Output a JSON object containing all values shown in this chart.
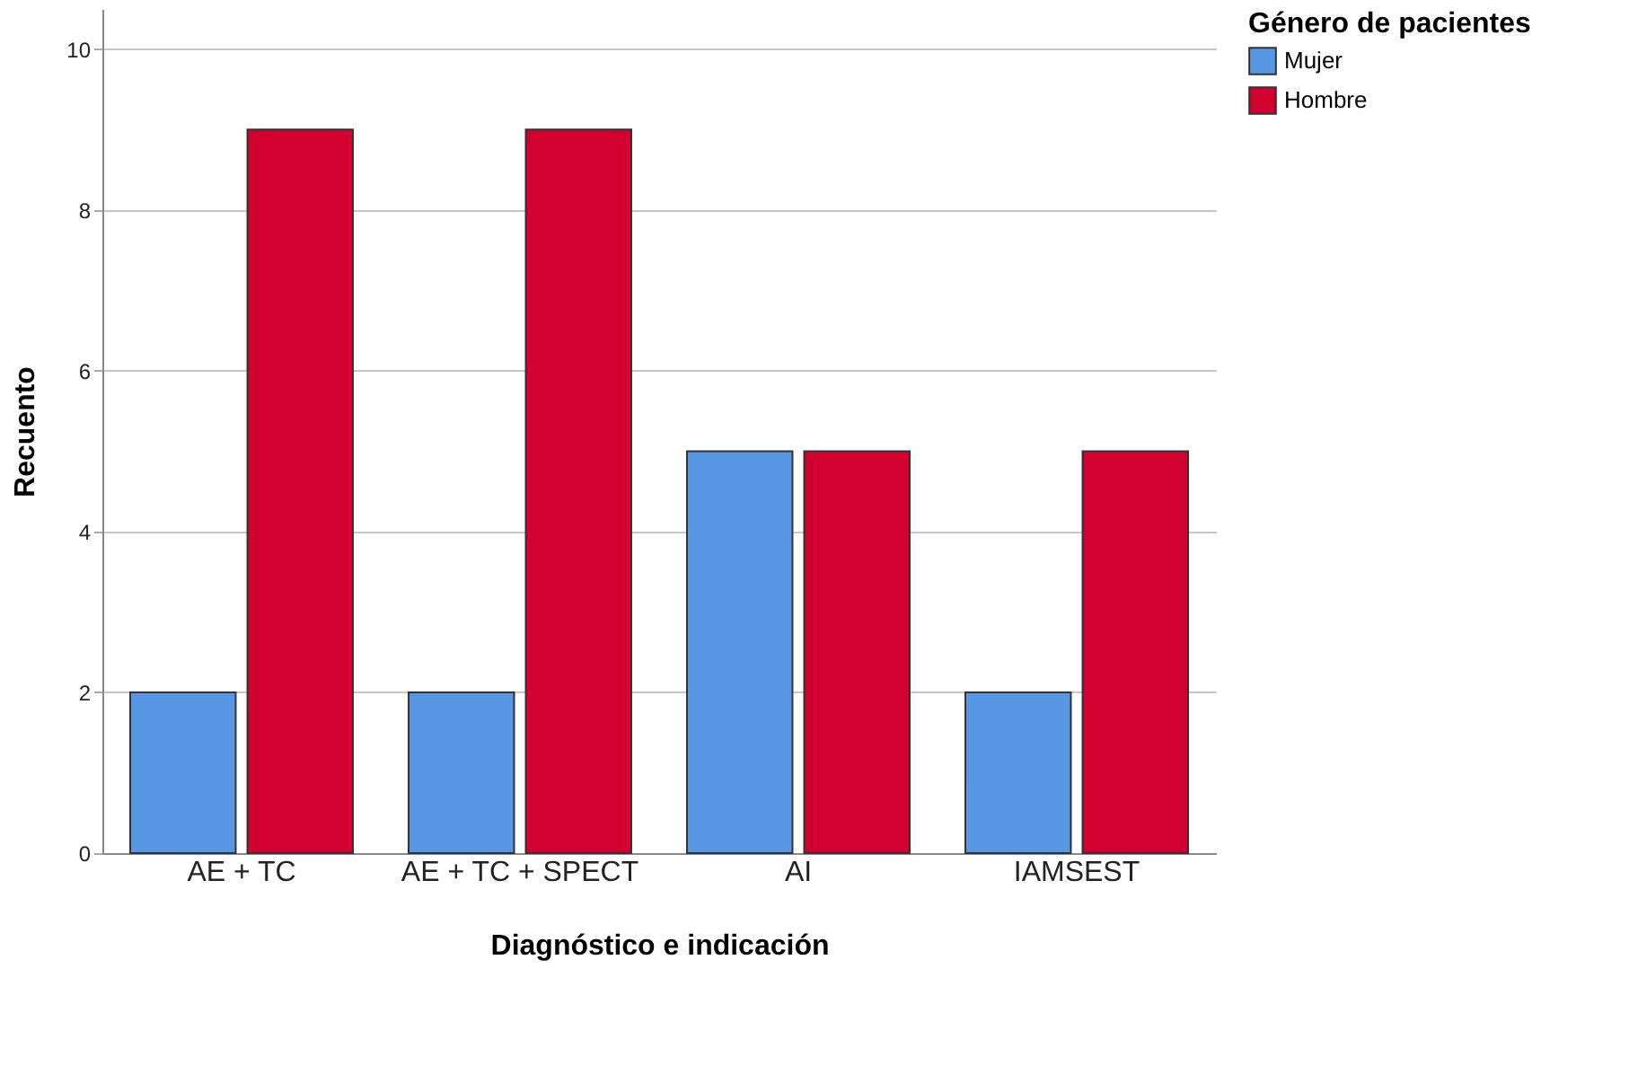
{
  "chart_data": {
    "type": "bar",
    "xlabel": "Diagnóstico e indicación",
    "ylabel": "Recuento",
    "legend_title": "Género de pacientes",
    "categories": [
      "AE + TC",
      "AE + TC + SPECT",
      "AI",
      "IAMSEST"
    ],
    "series": [
      {
        "name": "Mujer",
        "color": "#5897e3",
        "values": [
          2,
          2,
          5,
          2
        ]
      },
      {
        "name": "Hombre",
        "color": "#d2002e",
        "values": [
          9,
          9,
          5,
          5
        ]
      }
    ],
    "ylim": [
      0,
      10.5
    ],
    "yticks": [
      0,
      2,
      4,
      6,
      8,
      10
    ],
    "grid": "y",
    "legend": "top right"
  }
}
